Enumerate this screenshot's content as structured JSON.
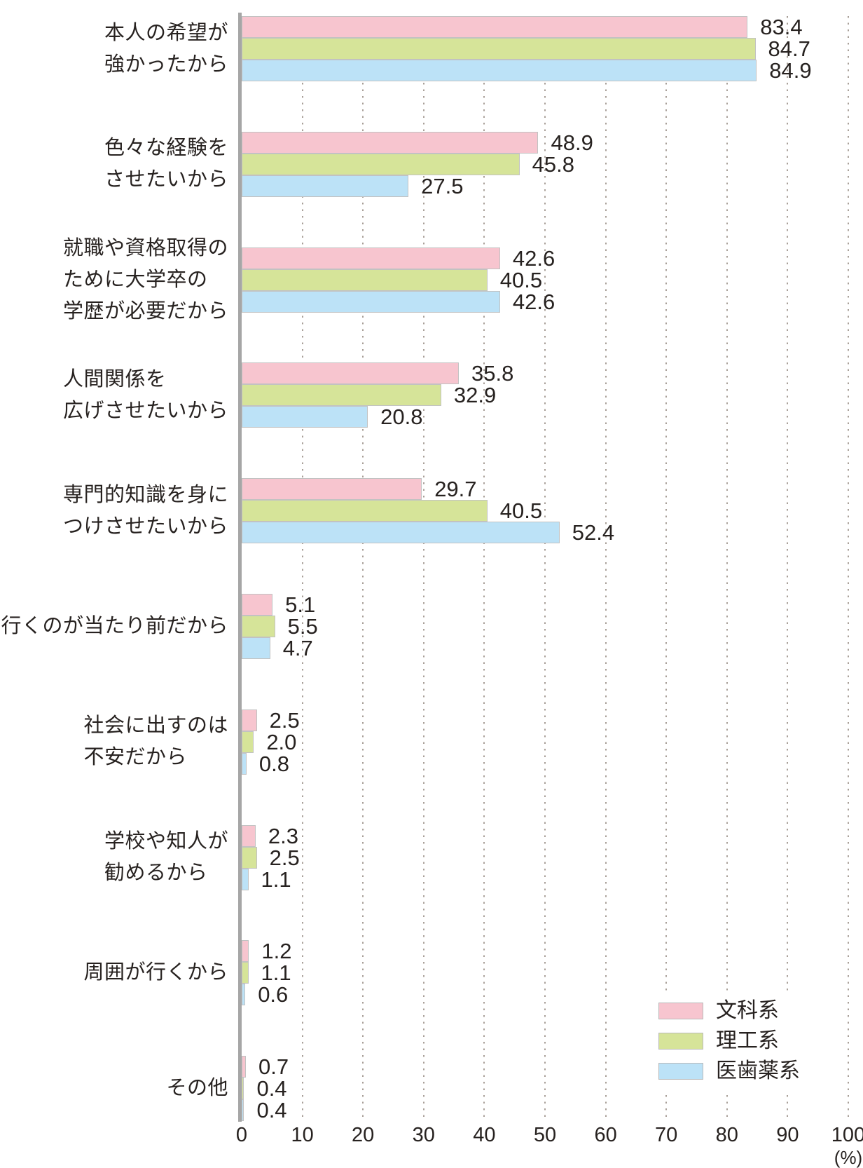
{
  "chart_data": {
    "type": "bar",
    "orientation": "horizontal",
    "title": "",
    "categories": [
      {
        "lines": [
          "本人の希望が",
          "強かったから"
        ]
      },
      {
        "lines": [
          "色々な経験を",
          "させたいから"
        ]
      },
      {
        "lines": [
          "就職や資格取得の",
          "ために大学卒の",
          "学歴が必要だから"
        ]
      },
      {
        "lines": [
          "人間関係を",
          "広げさせたいから"
        ]
      },
      {
        "lines": [
          "専門的知識を身に",
          "つけさせたいから"
        ]
      },
      {
        "lines": [
          "行くのが当たり前だから"
        ]
      },
      {
        "lines": [
          "社会に出すのは",
          "不安だから"
        ]
      },
      {
        "lines": [
          "学校や知人が",
          "勧めるから"
        ]
      },
      {
        "lines": [
          "周囲が行くから"
        ]
      },
      {
        "lines": [
          "その他"
        ]
      }
    ],
    "series": [
      {
        "name": "文科系",
        "color": "#f7c5cf",
        "values": [
          83.4,
          48.9,
          42.6,
          35.8,
          29.7,
          5.1,
          2.5,
          2.3,
          1.2,
          0.7
        ]
      },
      {
        "name": "理工系",
        "color": "#d6e499",
        "values": [
          84.7,
          45.8,
          40.5,
          32.9,
          40.5,
          5.5,
          2.0,
          2.5,
          1.1,
          0.4
        ]
      },
      {
        "name": "医歯薬系",
        "color": "#bce2f7",
        "values": [
          84.9,
          27.5,
          42.6,
          20.8,
          52.4,
          4.7,
          0.8,
          1.1,
          0.6,
          0.4
        ]
      }
    ],
    "x_axis": {
      "min": 0,
      "max": 100,
      "tick_interval": 10,
      "ticks": [
        "0",
        "10",
        "20",
        "30",
        "40",
        "50",
        "60",
        "70",
        "80",
        "90",
        "100"
      ],
      "unit_label": "(%)",
      "grid": "dotted-vertical"
    },
    "legend": {
      "position": "bottom-right",
      "entries": [
        "文科系",
        "理工系",
        "医歯薬系"
      ]
    },
    "value_labels": "one-decimal, right of each bar",
    "styles": {
      "grid_dot_color": "#a9a099",
      "axis_line_color": "#a6a6a6",
      "bar_border_color": "#c2c2c2",
      "text_color": "#272220"
    }
  }
}
